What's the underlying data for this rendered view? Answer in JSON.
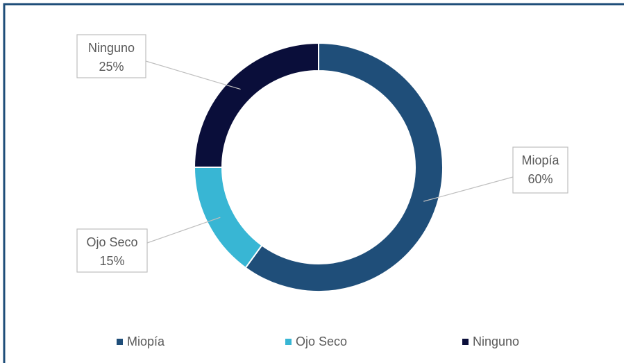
{
  "chart_data": {
    "type": "donut",
    "categories": [
      "Miopía",
      "Ojo Seco",
      "Ninguno"
    ],
    "values": [
      60,
      15,
      25
    ],
    "value_labels": [
      "60%",
      "15%",
      "25%"
    ],
    "colors": [
      "#1f4e79",
      "#38b6d4",
      "#0a0e3a"
    ],
    "legend": "bottom"
  }
}
